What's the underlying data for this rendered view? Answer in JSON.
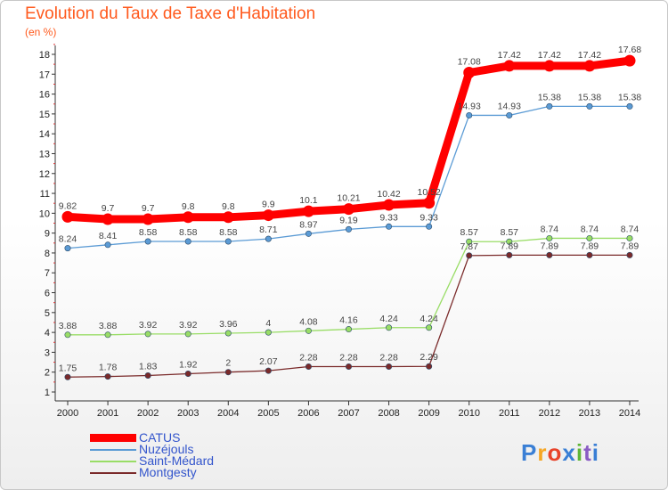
{
  "title": "Evolution du Taux de Taxe d'Habitation",
  "subtitle": "(en %)",
  "logo": {
    "text": "Proxiti",
    "colors": [
      "#3a7fd5",
      "#f6a623",
      "#e8432a",
      "#3a7fd5",
      "#5fb636",
      "#8a5cc4",
      "#3a7fd5"
    ]
  },
  "chart_data": {
    "type": "line",
    "x": [
      "2000",
      "2001",
      "2002",
      "2003",
      "2004",
      "2005",
      "2006",
      "2007",
      "2008",
      "2009",
      "2010",
      "2011",
      "2012",
      "2013",
      "2014"
    ],
    "ylim": [
      1,
      18
    ],
    "yticks": [
      1,
      2,
      3,
      4,
      5,
      6,
      7,
      8,
      9,
      10,
      11,
      12,
      13,
      14,
      15,
      16,
      17,
      18
    ],
    "grid": false,
    "legend_position": "bottom-left",
    "series": [
      {
        "name": "CATUS",
        "color": "#ff0000",
        "values": [
          9.82,
          9.7,
          9.7,
          9.8,
          9.8,
          9.9,
          10.1,
          10.21,
          10.42,
          10.52,
          17.08,
          17.42,
          17.42,
          17.42,
          17.68
        ],
        "labels": [
          "9.82",
          "9.7",
          "9.7",
          "9.8",
          "9.8",
          "9.9",
          "10.1",
          "10.21",
          "10.42",
          "10.52",
          "17.08",
          "17.42",
          "17.42",
          "17.42",
          "17.68"
        ]
      },
      {
        "name": "Nuzéjouls",
        "color": "#5b9bd5",
        "values": [
          8.24,
          8.41,
          8.58,
          8.58,
          8.58,
          8.71,
          8.97,
          9.19,
          9.33,
          9.33,
          14.93,
          14.93,
          15.38,
          15.38,
          15.38
        ],
        "labels": [
          "8.24",
          "8.41",
          "8.58",
          "8.58",
          "8.58",
          "8.71",
          "8.97",
          "9.19",
          "9.33",
          "9.33",
          "14.93",
          "14.93",
          "15.38",
          "15.38",
          "15.38"
        ]
      },
      {
        "name": "Saint-Médard",
        "color": "#99dd66",
        "values": [
          3.88,
          3.88,
          3.92,
          3.92,
          3.96,
          4,
          4.08,
          4.16,
          4.24,
          4.24,
          8.57,
          8.57,
          8.74,
          8.74,
          8.74
        ],
        "labels": [
          "3.88",
          "3.88",
          "3.92",
          "3.92",
          "3.96",
          "4",
          "4.08",
          "4.16",
          "4.24",
          "4.24",
          "8.57",
          "8.57",
          "8.74",
          "8.74",
          "8.74"
        ]
      },
      {
        "name": "Montgesty",
        "color": "#7a2a2a",
        "values": [
          1.75,
          1.78,
          1.83,
          1.92,
          2,
          2.07,
          2.28,
          2.28,
          2.28,
          2.29,
          7.87,
          7.89,
          7.89,
          7.89,
          7.89
        ],
        "labels": [
          "1.75",
          "1.78",
          "1.83",
          "1.92",
          "2",
          "2.07",
          "2.28",
          "2.28",
          "2.28",
          "2.29",
          "7.87",
          "7.89",
          "7.89",
          "7.89",
          "7.89"
        ]
      }
    ]
  }
}
